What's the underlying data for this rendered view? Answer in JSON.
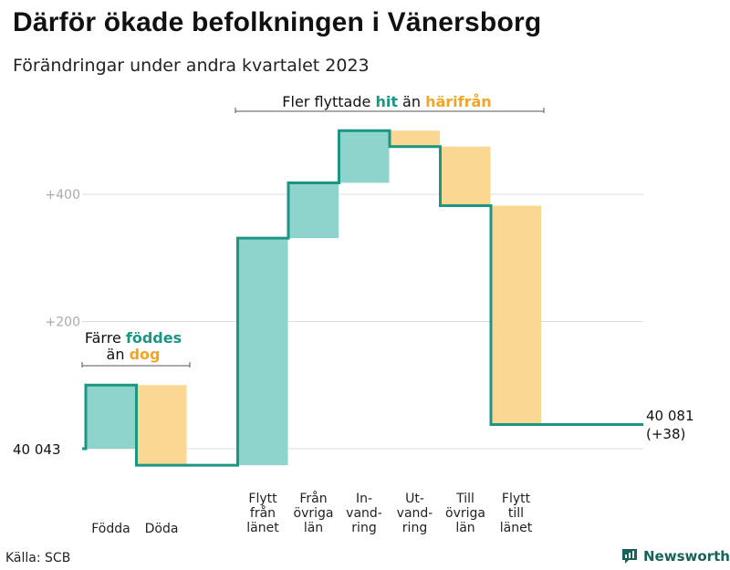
{
  "title": "Därför ökade befolkningen i Vänersborg",
  "subtitle": "Förändringar under andra kvartalet 2023",
  "source": "Källa: SCB",
  "brand": "Newsworthy",
  "colors": {
    "increase_fill": "#8ed4cc",
    "decrease_fill": "#fbd891",
    "step_line": "#1b9683",
    "teal_text": "#1b9683",
    "orange_text": "#f4a524",
    "grid": "#dddddd",
    "tick_text": "#aaaaaa"
  },
  "annotations": {
    "births": {
      "before": "Färre ",
      "teal": "föddes",
      "line2_before": "än ",
      "orange": "dog"
    },
    "moves": {
      "before": "Fler flyttade ",
      "teal": "hit",
      "middle": " än ",
      "orange": "härifrån"
    }
  },
  "chart_data": {
    "type": "waterfall",
    "base_value": 40043,
    "start_label": "40  043",
    "end_label": [
      "40 081",
      "(+38)"
    ],
    "y_ticks": [
      {
        "value": 200,
        "label": "+200"
      },
      {
        "value": 400,
        "label": "+400"
      }
    ],
    "ylim": [
      -40,
      540
    ],
    "categories": [
      {
        "label": [
          "Födda"
        ],
        "delta": 100
      },
      {
        "label": [
          "Döda"
        ],
        "delta": -126
      },
      {
        "label": [],
        "delta": 0
      },
      {
        "label": [
          "Flytt",
          "från",
          "länet"
        ],
        "delta": 357
      },
      {
        "label": [
          "Från",
          "övriga",
          "län"
        ],
        "delta": 87
      },
      {
        "label": [
          "In-",
          "vand-",
          "ring"
        ],
        "delta": 82
      },
      {
        "label": [
          "Ut-",
          "vand-",
          "ring"
        ],
        "delta": -25
      },
      {
        "label": [
          "Till",
          "övriga",
          "län"
        ],
        "delta": -93
      },
      {
        "label": [
          "Flytt",
          "till",
          "länet"
        ],
        "delta": -344
      }
    ],
    "grid": true
  }
}
